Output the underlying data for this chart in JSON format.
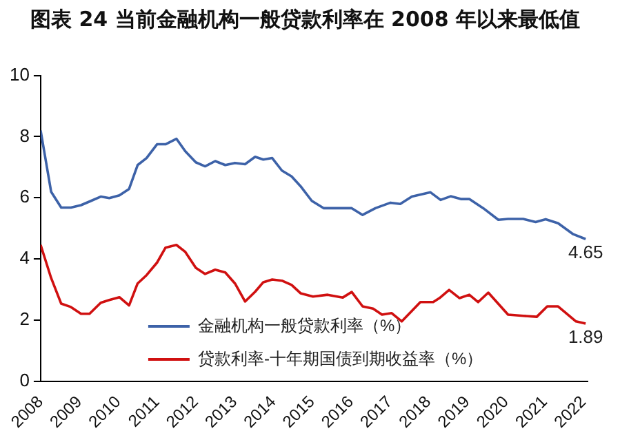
{
  "chart_data": {
    "type": "line",
    "title": "图表 24 当前金融机构一般贷款利率在 2008 年以来最低值",
    "xlim": [
      2008,
      2022.1
    ],
    "xticks": [
      2008,
      2009,
      2010,
      2011,
      2012,
      2013,
      2014,
      2015,
      2016,
      2017,
      2018,
      2019,
      2020,
      2021,
      2022
    ],
    "ylim": [
      0,
      10
    ],
    "yticks": [
      0,
      2,
      4,
      6,
      8,
      10
    ],
    "grid": false,
    "legend": "bottom",
    "marker": "none",
    "line_style": "solid",
    "series": [
      {
        "name": "金融机构一般贷款利率（%）",
        "color": "#3d62a8",
        "x": [
          2008.0,
          2008.27,
          2008.53,
          2008.78,
          2009.04,
          2009.3,
          2009.55,
          2009.77,
          2010.03,
          2010.28,
          2010.5,
          2010.73,
          2011.0,
          2011.22,
          2011.5,
          2011.73,
          2012.0,
          2012.24,
          2012.5,
          2012.76,
          2013.01,
          2013.27,
          2013.53,
          2013.74,
          2013.97,
          2014.22,
          2014.47,
          2014.7,
          2014.99,
          2015.3,
          2015.66,
          2016.02,
          2016.3,
          2016.63,
          2017.02,
          2017.27,
          2017.57,
          2018.05,
          2018.31,
          2018.57,
          2018.83,
          2019.05,
          2019.41,
          2019.8,
          2020.05,
          2020.44,
          2020.76,
          2021.02,
          2021.34,
          2021.73,
          2022.05
        ],
        "values": [
          8.2,
          6.2,
          5.68,
          5.68,
          5.76,
          5.9,
          6.04,
          5.99,
          6.08,
          6.29,
          7.07,
          7.3,
          7.75,
          7.75,
          7.93,
          7.52,
          7.16,
          7.03,
          7.2,
          7.07,
          7.14,
          7.1,
          7.34,
          7.25,
          7.3,
          6.89,
          6.7,
          6.38,
          5.9,
          5.66,
          5.66,
          5.66,
          5.44,
          5.66,
          5.84,
          5.8,
          6.04,
          6.18,
          5.93,
          6.05,
          5.96,
          5.96,
          5.66,
          5.28,
          5.31,
          5.31,
          5.21,
          5.3,
          5.17,
          4.81,
          4.65
        ]
      },
      {
        "name": "贷款利率-十年期国债到期收益率（%）",
        "color": "#d01010",
        "x": [
          2008.0,
          2008.27,
          2008.53,
          2008.78,
          2009.04,
          2009.26,
          2009.55,
          2009.77,
          2010.03,
          2010.28,
          2010.5,
          2010.73,
          2011.0,
          2011.22,
          2011.5,
          2011.73,
          2012.0,
          2012.24,
          2012.5,
          2012.76,
          2013.01,
          2013.27,
          2013.53,
          2013.74,
          2013.97,
          2014.22,
          2014.47,
          2014.7,
          2015.02,
          2015.4,
          2015.79,
          2016.02,
          2016.3,
          2016.57,
          2016.8,
          2017.05,
          2017.31,
          2017.79,
          2018.12,
          2018.28,
          2018.53,
          2018.8,
          2019.05,
          2019.28,
          2019.54,
          2020.05,
          2020.44,
          2020.79,
          2021.06,
          2021.34,
          2021.8,
          2022.05
        ],
        "values": [
          4.46,
          3.38,
          2.54,
          2.43,
          2.21,
          2.21,
          2.57,
          2.66,
          2.75,
          2.48,
          3.2,
          3.47,
          3.88,
          4.37,
          4.46,
          4.23,
          3.71,
          3.51,
          3.65,
          3.56,
          3.2,
          2.61,
          2.93,
          3.24,
          3.33,
          3.29,
          3.15,
          2.88,
          2.77,
          2.83,
          2.74,
          2.92,
          2.45,
          2.38,
          2.18,
          2.23,
          1.96,
          2.59,
          2.59,
          2.72,
          2.99,
          2.72,
          2.83,
          2.59,
          2.9,
          2.18,
          2.14,
          2.11,
          2.45,
          2.45,
          1.96,
          1.89
        ]
      }
    ],
    "annotations": [
      {
        "text": "4.65",
        "x": 2022.05,
        "y": 4.65
      },
      {
        "text": "1.89",
        "x": 2022.05,
        "y": 1.89
      }
    ]
  }
}
